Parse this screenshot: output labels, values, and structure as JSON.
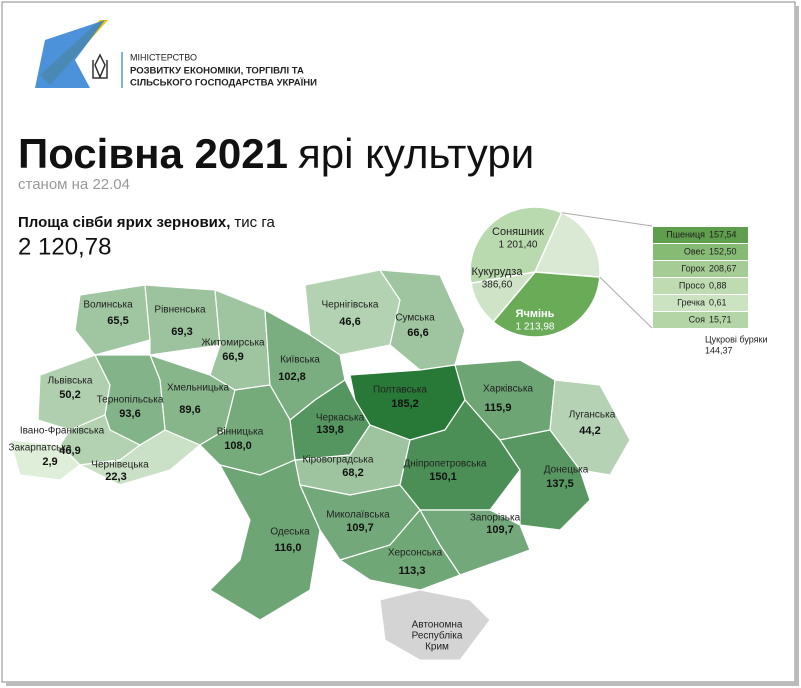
{
  "header": {
    "ministry": [
      "МІНІСТЕРСТВО",
      "РОЗВИТКУ ЕКОНОМІКИ, ТОРГІВЛІ ТА",
      "СІЛЬСЬКОГО ГОСПОДАРСТВА УКРАЇНИ"
    ]
  },
  "title_bold": "Посівна 2021",
  "title_rest": "ярі культури",
  "subtitle": "станом на 22.04",
  "area_label_bold": "Площа сівби ярих зернових,",
  "area_label_rest": "тис га",
  "total": {
    "value": 2120.78,
    "label": "2 120,78"
  },
  "pie": {
    "slices": [
      {
        "name": "Соняшник",
        "value": 1201.4,
        "label": "1 201,40"
      },
      {
        "name": "Ячмінь",
        "value": 1213.98,
        "label": "1 213,98"
      },
      {
        "name": "Кукурудза",
        "value": 386.6,
        "label": "386,60"
      }
    ],
    "others": [
      {
        "name": "Пшениця",
        "value": 157.54,
        "label": "157,54"
      },
      {
        "name": "Овес",
        "value": 152.5,
        "label": "152,50"
      },
      {
        "name": "Горох",
        "value": 208.67,
        "label": "208,67"
      },
      {
        "name": "Просо",
        "value": 0.88,
        "label": "0,88"
      },
      {
        "name": "Гречка",
        "value": 0.61,
        "label": "0,61"
      },
      {
        "name": "Соя",
        "value": 15.71,
        "label": "15,71"
      },
      {
        "name": "Цукрові буряки",
        "value": 144.37,
        "label": "144,37"
      }
    ]
  },
  "map": {
    "regions": [
      {
        "name": "Волинська",
        "value": 65.5,
        "label": "65,5"
      },
      {
        "name": "Рівненська",
        "value": 69.3,
        "label": "69,3"
      },
      {
        "name": "Житомирська",
        "value": 66.9,
        "label": "66,9"
      },
      {
        "name": "Чернігівська",
        "value": 46.6,
        "label": "46,6"
      },
      {
        "name": "Сумська",
        "value": 66.6,
        "label": "66,6"
      },
      {
        "name": "Київська",
        "value": 102.8,
        "label": "102,8"
      },
      {
        "name": "Львівська",
        "value": 50.2,
        "label": "50,2"
      },
      {
        "name": "Хмельницька",
        "value": 89.6,
        "label": "89,6"
      },
      {
        "name": "Тернопільська",
        "value": 93.6,
        "label": "93,6"
      },
      {
        "name": "Полтавська",
        "value": 185.2,
        "label": "185,2"
      },
      {
        "name": "Харківська",
        "value": 115.9,
        "label": "115,9"
      },
      {
        "name": "Луганська",
        "value": 44.2,
        "label": "44,2"
      },
      {
        "name": "Черкаська",
        "value": 139.8,
        "label": "139,8"
      },
      {
        "name": "Вінницька",
        "value": 108.0,
        "label": "108,0"
      },
      {
        "name": "Івано-Франківська",
        "value": 46.9,
        "label": "46,9"
      },
      {
        "name": "Закарпатська",
        "value": 2.9,
        "label": "2,9"
      },
      {
        "name": "Чернівецька",
        "value": 22.3,
        "label": "22,3"
      },
      {
        "name": "Кіровоградська",
        "value": 68.2,
        "label": "68,2"
      },
      {
        "name": "Дніпропетровська",
        "value": 150.1,
        "label": "150,1"
      },
      {
        "name": "Донецька",
        "value": 137.5,
        "label": "137,5"
      },
      {
        "name": "Одеська",
        "value": 116.0,
        "label": "116,0"
      },
      {
        "name": "Миколаївська",
        "value": 109.7,
        "label": "109,7"
      },
      {
        "name": "Запорізька",
        "value": 109.7,
        "label": "109,7"
      },
      {
        "name": "Херсонська",
        "value": 113.3,
        "label": "113,3"
      }
    ],
    "crimea": [
      "Автономна",
      "Республіка",
      "Крим"
    ]
  }
}
